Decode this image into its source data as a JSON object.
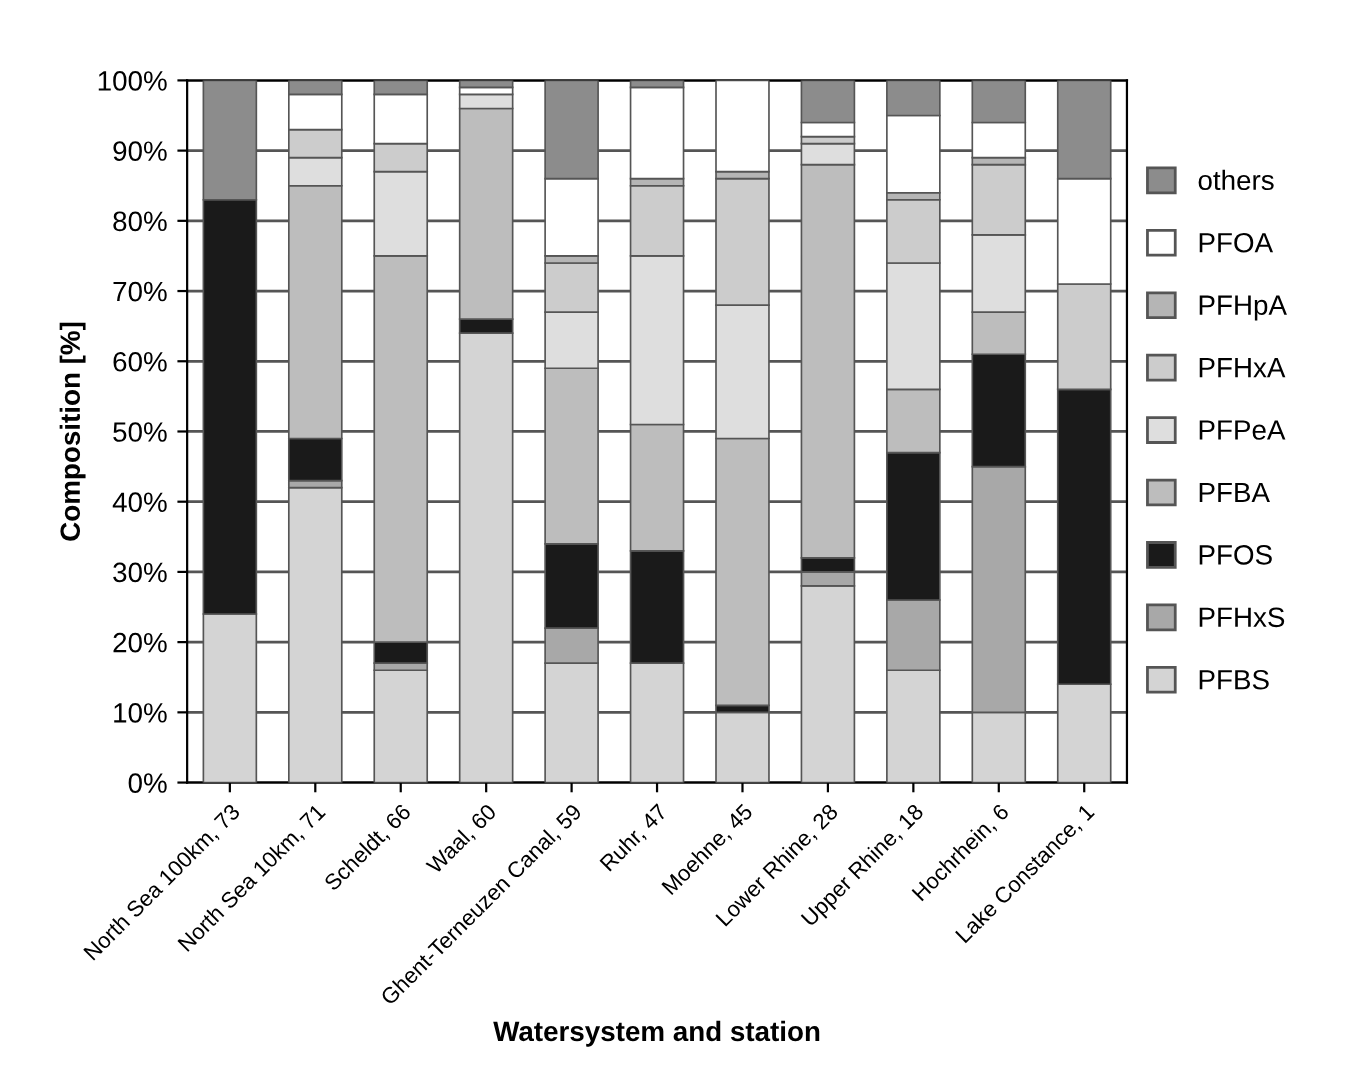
{
  "chart_data": {
    "type": "bar",
    "stacked": true,
    "xlabel": "Watersystem and station",
    "ylabel": "Composition [%]",
    "categories": [
      "North Sea 100km, 73",
      "North Sea 10km, 71",
      "Scheldt, 66",
      "Waal, 60",
      "Ghent-Terneuzen Canal, 59",
      "Ruhr, 47",
      "Moehne, 45",
      "Lower Rhine, 28",
      "Upper Rhine, 18",
      "Hochrhein, 6",
      "Lake Constance, 1"
    ],
    "series": [
      {
        "name": "PFBS",
        "color": "#d4d4d4",
        "values": [
          24,
          42,
          16,
          64,
          17,
          17,
          10,
          28,
          16,
          10,
          14
        ]
      },
      {
        "name": "PFHxS",
        "color": "#a8a8a8",
        "values": [
          0,
          1,
          1,
          0,
          5,
          0,
          0,
          2,
          10,
          35,
          0
        ]
      },
      {
        "name": "PFOS",
        "color": "#1a1a1a",
        "values": [
          59,
          6,
          3,
          2,
          12,
          16,
          1,
          2,
          21,
          16,
          42
        ]
      },
      {
        "name": "PFBA",
        "color": "#bdbdbd",
        "values": [
          0,
          36,
          55,
          30,
          25,
          18,
          38,
          56,
          9,
          6,
          0
        ]
      },
      {
        "name": "PFPeA",
        "color": "#dedede",
        "values": [
          0,
          4,
          12,
          2,
          8,
          24,
          19,
          3,
          18,
          11,
          0
        ]
      },
      {
        "name": "PFHxA",
        "color": "#cccccc",
        "values": [
          0,
          4,
          4,
          0,
          7,
          10,
          18,
          1,
          9,
          10,
          15
        ]
      },
      {
        "name": "PFHpA",
        "color": "#b5b5b5",
        "values": [
          0,
          0,
          0,
          0,
          1,
          1,
          1,
          0,
          1,
          1,
          0
        ]
      },
      {
        "name": "PFOA",
        "color": "#ffffff",
        "values": [
          0,
          5,
          7,
          1,
          11,
          13,
          13,
          2,
          11,
          5,
          15
        ]
      },
      {
        "name": "others",
        "color": "#8c8c8c",
        "values": [
          17,
          2,
          2,
          1,
          14,
          1,
          0,
          6,
          5,
          6,
          14
        ]
      }
    ],
    "ylim": [
      0,
      100
    ],
    "yticks": [
      {
        "value": 0,
        "label": "0%"
      },
      {
        "value": 10,
        "label": "10%"
      },
      {
        "value": 20,
        "label": "20%"
      },
      {
        "value": 30,
        "label": "30%"
      },
      {
        "value": 40,
        "label": "40%"
      },
      {
        "value": 50,
        "label": "50%"
      },
      {
        "value": 60,
        "label": "60%"
      },
      {
        "value": 70,
        "label": "70%"
      },
      {
        "value": 80,
        "label": "80%"
      },
      {
        "value": 90,
        "label": "90%"
      },
      {
        "value": 100,
        "label": "100%"
      }
    ],
    "grid": "y",
    "legend": "right"
  }
}
